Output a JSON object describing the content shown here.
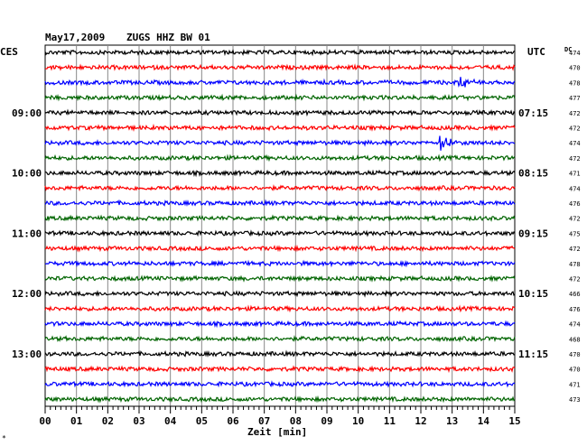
{
  "header": {
    "date": "May17,2009",
    "station": "ZUGS HHZ BW 01",
    "left_zone": "CES",
    "right_zone": "UTC",
    "dc_label": "DC"
  },
  "x_axis": {
    "label": "Zeit [min]",
    "ticks": [
      "00",
      "01",
      "02",
      "03",
      "04",
      "05",
      "06",
      "07",
      "08",
      "09",
      "10",
      "11",
      "12",
      "13",
      "14",
      "15"
    ],
    "range": [
      0,
      15
    ]
  },
  "left_hours": [
    "09:00",
    "10:00",
    "11:00",
    "12:00",
    "13:00"
  ],
  "right_hours": [
    "07:15",
    "08:15",
    "09:15",
    "10:15",
    "11:15"
  ],
  "hour_trace_indices": [
    4,
    8,
    12,
    16,
    20
  ],
  "trace_colors": [
    "#000000",
    "#ff0000",
    "#0000ff",
    "#006400"
  ],
  "dc_values": [
    "474",
    "470",
    "478",
    "477",
    "472",
    "472",
    "474",
    "472",
    "471",
    "474",
    "476",
    "472",
    "475",
    "472",
    "478",
    "472",
    "466",
    "476",
    "474",
    "468",
    "470",
    "470",
    "471",
    "473"
  ],
  "events": [
    {
      "trace_index": 2,
      "time_min": 13.3,
      "amplitude": 7
    },
    {
      "trace_index": 6,
      "time_min": 12.6,
      "amplitude": 9
    }
  ],
  "corner_mark": "*",
  "chart_data": {
    "type": "seismogram helicorder",
    "title": "May17,2009   ZUGS HHZ BW 01",
    "xlabel": "Zeit [min]",
    "xlim": [
      0,
      15
    ],
    "traces_per_hour": 4,
    "trace_count": 24,
    "colors": [
      "black",
      "red",
      "blue",
      "green"
    ],
    "dc_offsets": [
      474,
      470,
      478,
      477,
      472,
      472,
      474,
      472,
      471,
      474,
      476,
      472,
      475,
      472,
      478,
      472,
      466,
      476,
      474,
      468,
      470,
      470,
      471,
      473
    ]
  }
}
